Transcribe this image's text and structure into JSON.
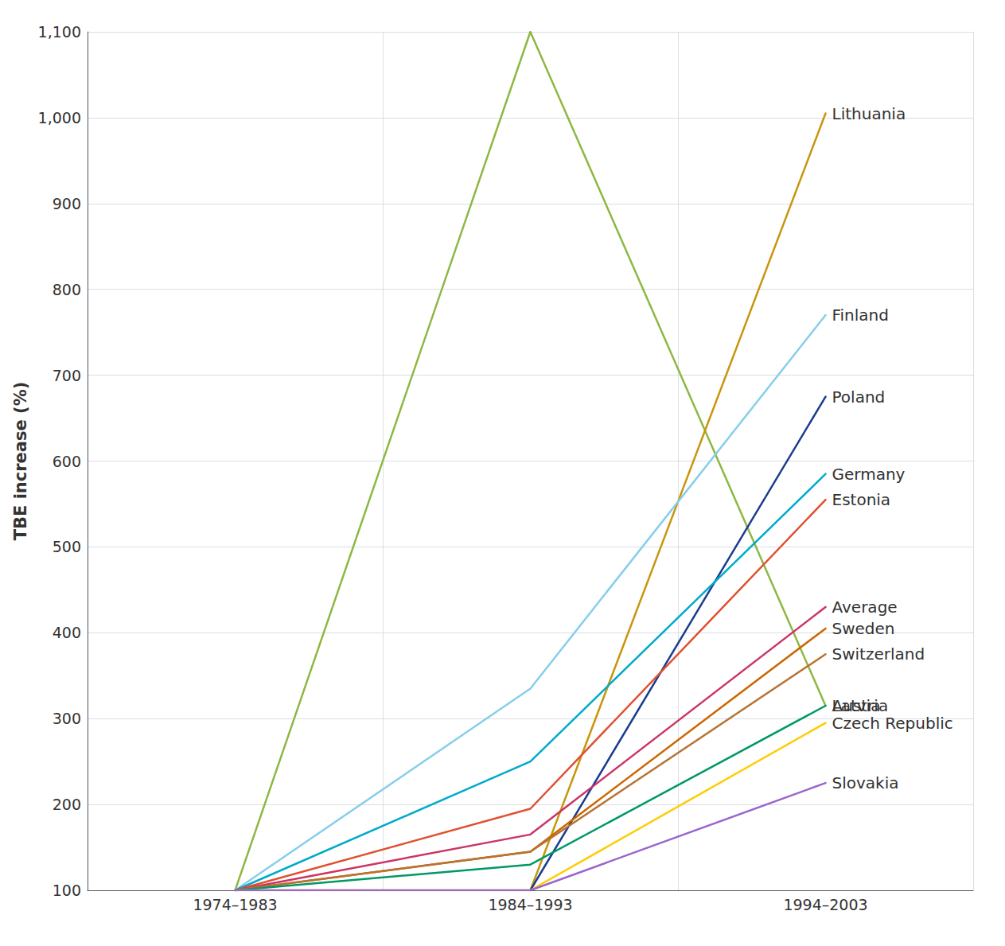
{
  "chart_data": {
    "type": "line",
    "ylabel": "TBE increase (%)",
    "categories": [
      "1974–1983",
      "1984–1993",
      "1994–2003"
    ],
    "ylim": [
      100,
      1100
    ],
    "yticks": [
      100,
      200,
      300,
      400,
      500,
      600,
      700,
      800,
      900,
      1000,
      1100
    ],
    "grid": true,
    "series": [
      {
        "name": "Austria",
        "color": "#8db843",
        "values": [
          100,
          1100,
          315
        ]
      },
      {
        "name": "Lithuania",
        "color": "#c8960c",
        "values": [
          null,
          100,
          1005
        ]
      },
      {
        "name": "Finland",
        "color": "#87ceeb",
        "values": [
          100,
          335,
          770
        ]
      },
      {
        "name": "Poland",
        "color": "#1a3d8f",
        "values": [
          null,
          100,
          675
        ]
      },
      {
        "name": "Germany",
        "color": "#00aacc",
        "values": [
          100,
          250,
          585
        ]
      },
      {
        "name": "Estonia",
        "color": "#e05030",
        "values": [
          100,
          195,
          555
        ]
      },
      {
        "name": "Average",
        "color": "#cc3366",
        "values": [
          100,
          165,
          430
        ]
      },
      {
        "name": "Sweden",
        "color": "#cc6600",
        "values": [
          100,
          145,
          405
        ]
      },
      {
        "name": "Switzerland",
        "color": "#b87333",
        "values": [
          100,
          145,
          375
        ]
      },
      {
        "name": "Latvia",
        "color": "#009966",
        "values": [
          100,
          130,
          315
        ]
      },
      {
        "name": "Czech Republic",
        "color": "#ffcc00",
        "values": [
          100,
          100,
          295
        ]
      },
      {
        "name": "Slovakia",
        "color": "#9966cc",
        "values": [
          100,
          100,
          225
        ]
      }
    ]
  }
}
